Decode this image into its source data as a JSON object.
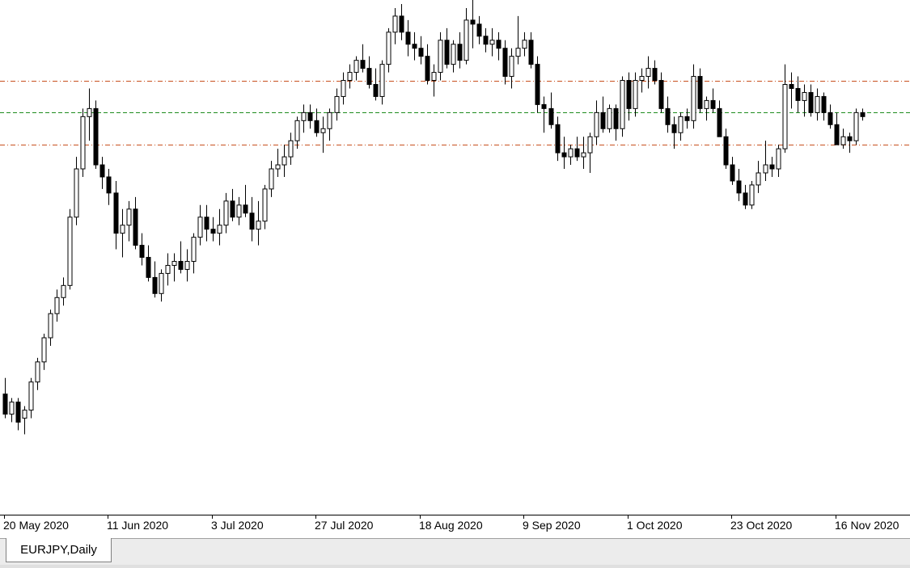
{
  "chart_tab": {
    "label": "EURJPY,Daily"
  },
  "chart_data": {
    "type": "candlestick",
    "symbol": "EURJPY",
    "timeframe": "Daily",
    "x_tick_labels": [
      "20 May 2020",
      "11 Jun 2020",
      "3 Jul 2020",
      "27 Jul 2020",
      "18 Aug 2020",
      "9 Sep 2020",
      "1 Oct 2020",
      "23 Oct 2020",
      "16 Nov 2020"
    ],
    "x_tick_index": [
      0,
      16,
      32,
      48,
      64,
      80,
      96,
      112,
      128
    ],
    "price_range": [
      114.2,
      127.0
    ],
    "horizontal_lines": [
      {
        "price": 125.0,
        "style": "dash-dot",
        "color": "#c8501e"
      },
      {
        "price": 124.2,
        "style": "dashed",
        "color": "#1e8c1e"
      },
      {
        "price": 123.4,
        "style": "dash-dot",
        "color": "#c8501e"
      }
    ],
    "candles": [
      [
        117.2,
        117.6,
        116.6,
        116.7
      ],
      [
        116.7,
        117.1,
        116.5,
        117.0
      ],
      [
        117.0,
        117.1,
        116.3,
        116.5
      ],
      [
        116.6,
        116.9,
        116.2,
        116.8
      ],
      [
        116.8,
        117.6,
        116.6,
        117.5
      ],
      [
        117.5,
        118.1,
        117.3,
        118.0
      ],
      [
        118.0,
        118.7,
        117.8,
        118.6
      ],
      [
        118.6,
        119.3,
        118.4,
        119.2
      ],
      [
        119.2,
        119.8,
        119.0,
        119.6
      ],
      [
        119.6,
        120.1,
        119.4,
        119.9
      ],
      [
        119.9,
        121.8,
        119.8,
        121.6
      ],
      [
        121.6,
        123.1,
        121.4,
        122.8
      ],
      [
        122.8,
        124.3,
        122.6,
        124.1
      ],
      [
        124.1,
        124.8,
        123.5,
        124.3
      ],
      [
        124.3,
        124.5,
        122.8,
        122.9
      ],
      [
        122.9,
        123.1,
        122.3,
        122.6
      ],
      [
        122.6,
        122.8,
        121.9,
        122.2
      ],
      [
        122.2,
        122.5,
        120.8,
        121.2
      ],
      [
        121.2,
        121.8,
        120.6,
        121.4
      ],
      [
        121.4,
        122.0,
        121.0,
        121.8
      ],
      [
        121.8,
        122.1,
        120.8,
        120.9
      ],
      [
        120.9,
        121.2,
        120.4,
        120.6
      ],
      [
        120.6,
        120.9,
        120.0,
        120.1
      ],
      [
        120.1,
        120.5,
        119.6,
        119.7
      ],
      [
        119.7,
        120.3,
        119.5,
        120.2
      ],
      [
        120.2,
        120.7,
        119.9,
        120.4
      ],
      [
        120.4,
        120.7,
        120.0,
        120.5
      ],
      [
        120.5,
        121.0,
        120.2,
        120.3
      ],
      [
        120.3,
        120.8,
        120.0,
        120.5
      ],
      [
        120.5,
        121.2,
        120.2,
        121.1
      ],
      [
        121.1,
        121.9,
        120.9,
        121.6
      ],
      [
        121.6,
        121.9,
        121.0,
        121.3
      ],
      [
        121.3,
        121.6,
        121.0,
        121.2
      ],
      [
        121.2,
        121.8,
        120.9,
        121.4
      ],
      [
        121.4,
        122.2,
        121.2,
        122.0
      ],
      [
        122.0,
        122.3,
        121.5,
        121.6
      ],
      [
        121.6,
        122.1,
        121.4,
        121.9
      ],
      [
        121.9,
        122.4,
        121.6,
        121.7
      ],
      [
        121.7,
        122.1,
        121.0,
        121.3
      ],
      [
        121.3,
        122.0,
        120.9,
        121.5
      ],
      [
        121.5,
        122.4,
        121.3,
        122.3
      ],
      [
        122.3,
        123.0,
        122.1,
        122.8
      ],
      [
        122.8,
        123.3,
        122.6,
        122.9
      ],
      [
        122.9,
        123.4,
        122.6,
        123.1
      ],
      [
        123.1,
        123.7,
        122.9,
        123.5
      ],
      [
        123.5,
        124.1,
        123.3,
        124.0
      ],
      [
        124.0,
        124.4,
        123.7,
        124.2
      ],
      [
        124.2,
        124.4,
        123.8,
        124.0
      ],
      [
        124.0,
        124.3,
        123.6,
        123.7
      ],
      [
        123.7,
        124.1,
        123.2,
        123.8
      ],
      [
        123.8,
        124.3,
        123.5,
        124.2
      ],
      [
        124.2,
        124.8,
        124.0,
        124.6
      ],
      [
        124.6,
        125.2,
        124.4,
        125.0
      ],
      [
        125.0,
        125.4,
        124.8,
        125.2
      ],
      [
        125.2,
        125.6,
        125.0,
        125.5
      ],
      [
        125.5,
        125.9,
        125.2,
        125.3
      ],
      [
        125.3,
        125.6,
        124.8,
        124.9
      ],
      [
        124.9,
        125.3,
        124.5,
        124.6
      ],
      [
        124.6,
        125.5,
        124.4,
        125.4
      ],
      [
        125.4,
        126.3,
        125.2,
        126.2
      ],
      [
        126.2,
        126.8,
        125.9,
        126.6
      ],
      [
        126.6,
        126.9,
        126.0,
        126.2
      ],
      [
        126.2,
        126.5,
        125.6,
        125.9
      ],
      [
        125.9,
        126.2,
        125.5,
        125.8
      ],
      [
        125.8,
        126.1,
        125.4,
        125.6
      ],
      [
        125.6,
        125.9,
        124.9,
        125.0
      ],
      [
        125.0,
        125.4,
        124.6,
        125.2
      ],
      [
        125.2,
        126.2,
        125.0,
        126.0
      ],
      [
        126.0,
        126.3,
        125.3,
        125.4
      ],
      [
        125.4,
        126.0,
        125.2,
        125.9
      ],
      [
        125.9,
        126.2,
        125.3,
        125.5
      ],
      [
        125.5,
        126.8,
        125.4,
        126.5
      ],
      [
        126.5,
        127.1,
        125.8,
        126.4
      ],
      [
        126.4,
        126.6,
        125.9,
        126.1
      ],
      [
        126.1,
        126.3,
        125.7,
        125.9
      ],
      [
        125.9,
        126.3,
        125.6,
        126.0
      ],
      [
        126.0,
        126.2,
        125.5,
        125.8
      ],
      [
        125.8,
        126.0,
        124.9,
        125.1
      ],
      [
        125.1,
        125.8,
        124.8,
        125.6
      ],
      [
        125.6,
        126.6,
        125.4,
        125.8
      ],
      [
        125.8,
        126.2,
        125.6,
        126.0
      ],
      [
        126.0,
        126.2,
        125.3,
        125.4
      ],
      [
        125.4,
        125.6,
        124.2,
        124.4
      ],
      [
        124.4,
        124.6,
        123.7,
        124.3
      ],
      [
        124.3,
        124.7,
        123.8,
        123.9
      ],
      [
        123.9,
        124.1,
        123.0,
        123.2
      ],
      [
        123.2,
        123.6,
        122.8,
        123.1
      ],
      [
        123.1,
        123.4,
        122.9,
        123.3
      ],
      [
        123.3,
        123.6,
        123.0,
        123.1
      ],
      [
        123.1,
        123.6,
        122.8,
        123.2
      ],
      [
        123.2,
        123.7,
        122.7,
        123.6
      ],
      [
        123.6,
        124.5,
        123.4,
        124.2
      ],
      [
        124.2,
        124.6,
        123.7,
        123.8
      ],
      [
        123.8,
        124.4,
        123.7,
        124.3
      ],
      [
        124.3,
        124.4,
        123.5,
        123.8
      ],
      [
        123.8,
        125.1,
        123.6,
        125.0
      ],
      [
        125.0,
        125.2,
        124.0,
        124.3
      ],
      [
        124.3,
        125.2,
        124.1,
        125.0
      ],
      [
        125.0,
        125.3,
        124.7,
        125.1
      ],
      [
        125.1,
        125.6,
        124.8,
        125.3
      ],
      [
        125.3,
        125.5,
        124.9,
        125.0
      ],
      [
        125.0,
        125.2,
        124.2,
        124.3
      ],
      [
        124.3,
        124.6,
        123.7,
        123.9
      ],
      [
        123.9,
        124.1,
        123.3,
        123.7
      ],
      [
        123.7,
        124.2,
        123.5,
        124.1
      ],
      [
        124.1,
        124.3,
        123.8,
        124.0
      ],
      [
        124.0,
        125.4,
        123.8,
        125.1
      ],
      [
        125.1,
        125.3,
        124.2,
        124.3
      ],
      [
        124.3,
        124.6,
        124.0,
        124.5
      ],
      [
        124.5,
        124.8,
        124.2,
        124.3
      ],
      [
        124.3,
        124.5,
        123.6,
        123.6
      ],
      [
        123.6,
        123.8,
        122.8,
        122.9
      ],
      [
        122.9,
        123.1,
        122.4,
        122.5
      ],
      [
        122.5,
        122.8,
        122.0,
        122.2
      ],
      [
        122.2,
        122.4,
        121.8,
        121.9
      ],
      [
        121.9,
        122.5,
        121.8,
        122.4
      ],
      [
        122.4,
        123.0,
        122.2,
        122.7
      ],
      [
        122.7,
        123.5,
        122.5,
        122.9
      ],
      [
        122.9,
        123.1,
        122.6,
        122.8
      ],
      [
        122.8,
        123.4,
        122.6,
        123.3
      ],
      [
        123.3,
        125.4,
        123.2,
        124.9
      ],
      [
        124.9,
        125.2,
        124.3,
        124.8
      ],
      [
        124.8,
        125.1,
        124.2,
        124.5
      ],
      [
        124.5,
        124.9,
        124.1,
        124.7
      ],
      [
        124.7,
        124.9,
        124.1,
        124.2
      ],
      [
        124.2,
        124.8,
        124.0,
        124.6
      ],
      [
        124.6,
        124.7,
        124.0,
        124.2
      ],
      [
        124.2,
        124.4,
        123.8,
        123.9
      ],
      [
        123.9,
        124.2,
        123.4,
        123.4
      ],
      [
        123.4,
        123.8,
        123.3,
        123.6
      ],
      [
        123.6,
        123.7,
        123.2,
        123.5
      ],
      [
        123.5,
        124.3,
        123.4,
        124.2
      ],
      [
        124.2,
        124.3,
        124.0,
        124.1
      ]
    ]
  }
}
